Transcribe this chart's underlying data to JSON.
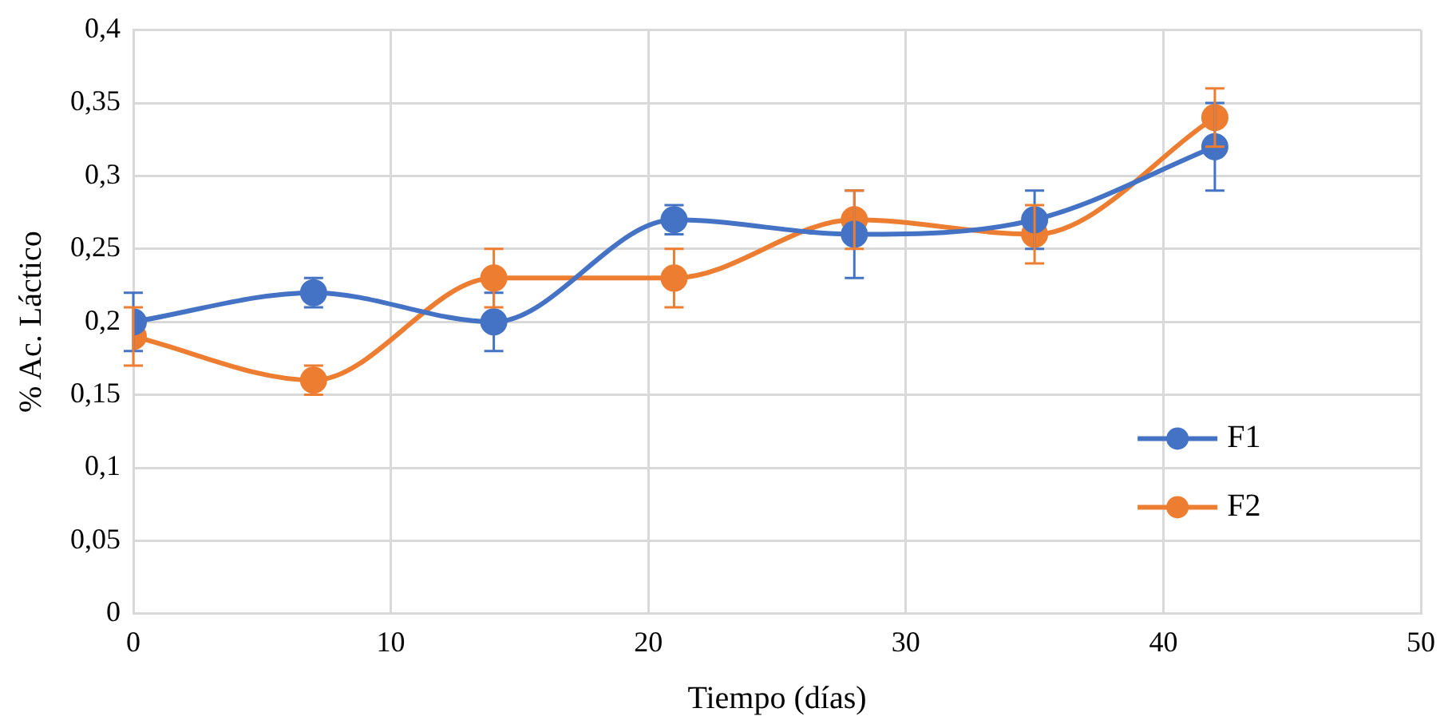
{
  "chart_data": {
    "type": "line",
    "xlabel": "Tiempo (días)",
    "ylabel": "% Ac. Láctico",
    "x": [
      0,
      7,
      14,
      21,
      28,
      35,
      42
    ],
    "series": [
      {
        "name": "F1",
        "color": "#4472c4",
        "values": [
          0.2,
          0.22,
          0.2,
          0.27,
          0.26,
          0.27,
          0.32
        ],
        "errors": [
          0.02,
          0.01,
          0.02,
          0.01,
          0.03,
          0.02,
          0.03
        ]
      },
      {
        "name": "F2",
        "color": "#ed7d31",
        "values": [
          0.19,
          0.16,
          0.23,
          0.23,
          0.27,
          0.26,
          0.34
        ],
        "errors": [
          0.02,
          0.01,
          0.02,
          0.02,
          0.02,
          0.02,
          0.02
        ]
      }
    ],
    "xlim": [
      0,
      50
    ],
    "xticks": [
      0,
      10,
      20,
      30,
      40,
      50
    ],
    "ylim": [
      0,
      0.4
    ],
    "yticks": [
      0,
      {
        "value": 0.05,
        "label": "0,05"
      },
      {
        "value": 0.1,
        "label": "0,1"
      },
      {
        "value": 0.15,
        "label": "0,15"
      },
      {
        "value": 0.2,
        "label": "0,2"
      },
      {
        "value": 0.25,
        "label": "0,25"
      },
      {
        "value": 0.3,
        "label": "0,3"
      },
      {
        "value": 0.35,
        "label": "0,35"
      },
      {
        "value": 0.4,
        "label": "0,4"
      }
    ],
    "grid": true,
    "legend": "right",
    "marker": "circle",
    "line_style": "solid"
  }
}
